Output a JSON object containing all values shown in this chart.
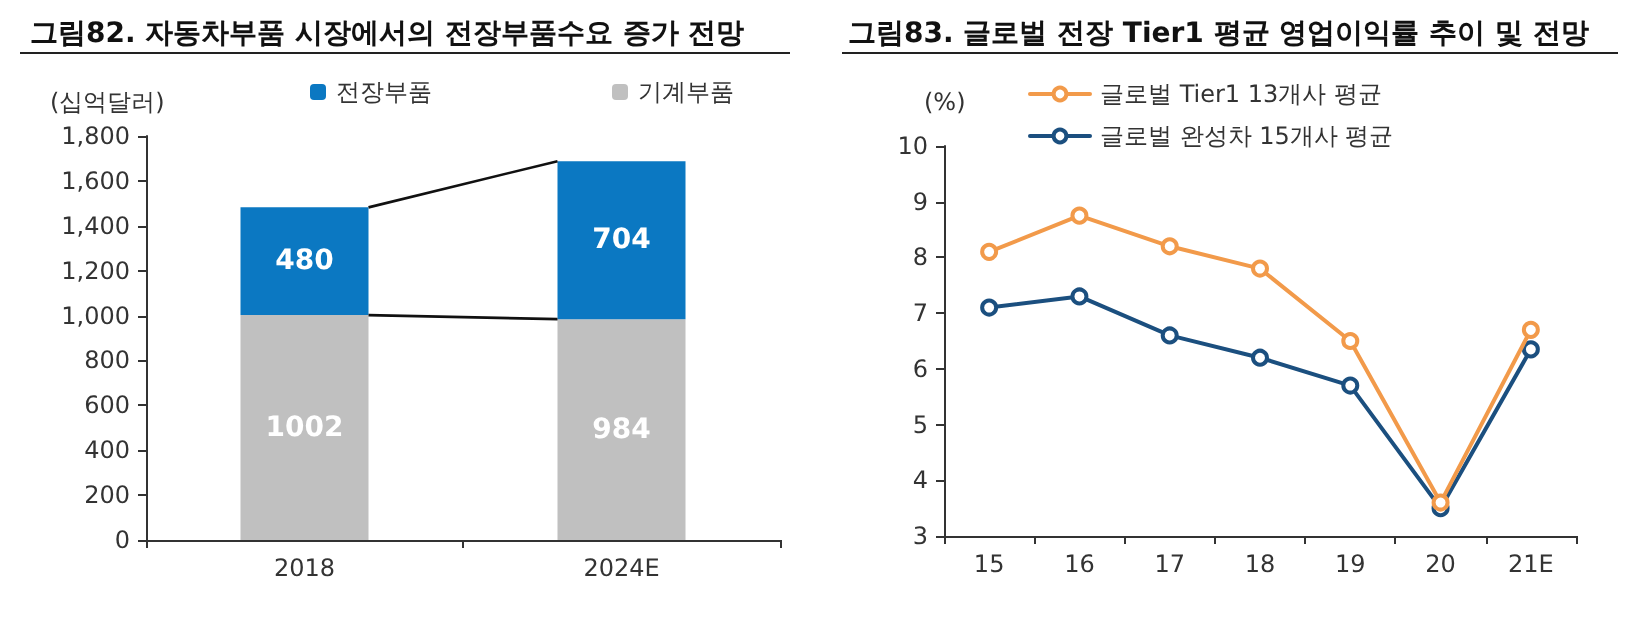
{
  "chart_data": [
    {
      "type": "bar",
      "title": "그림82. 자동차부품 시장에서의 전장부품수요 증가 전망",
      "ylabel": "(십억달러)",
      "categories": [
        "2018",
        "2024E"
      ],
      "stacked": true,
      "series": [
        {
          "name": "기계부품",
          "color": "#c0c0c0",
          "values": [
            1002,
            984
          ]
        },
        {
          "name": "전장부품",
          "color": "#0b78c2",
          "values": [
            480,
            704
          ]
        }
      ],
      "ylim": [
        0,
        1800
      ],
      "yticks": [
        {
          "value": 0,
          "label": "0"
        },
        {
          "value": 200,
          "label": "200"
        },
        {
          "value": 400,
          "label": "400"
        },
        {
          "value": 600,
          "label": "600"
        },
        {
          "value": 800,
          "label": "800"
        },
        {
          "value": 1000,
          "label": "1,000"
        },
        {
          "value": 1200,
          "label": "1,200"
        },
        {
          "value": 1400,
          "label": "1,400"
        },
        {
          "value": 1600,
          "label": "1,600"
        },
        {
          "value": 1800,
          "label": "1,800"
        }
      ],
      "data_labels": true,
      "legend": "top",
      "grid": false
    },
    {
      "type": "line",
      "title": "그림83. 글로벌 전장 Tier1 평균 영업이익률 추이 및 전망",
      "ylabel": "(%)",
      "categories": [
        "15",
        "16",
        "17",
        "18",
        "19",
        "20",
        "21E"
      ],
      "series": [
        {
          "name": "글로벌 Tier1 13개사 평균",
          "color": "#f29a4a",
          "values": [
            8.1,
            8.75,
            8.2,
            7.8,
            6.5,
            3.6,
            6.7
          ]
        },
        {
          "name": "글로벌 완성차 15개사 평균",
          "color": "#1b4f7f",
          "values": [
            7.1,
            7.3,
            6.6,
            6.2,
            5.7,
            3.5,
            6.35
          ]
        }
      ],
      "ylim": [
        3,
        10
      ],
      "yticks": [
        3,
        4,
        5,
        6,
        7,
        8,
        9,
        10
      ],
      "marker": "circle",
      "line_style": "solid",
      "legend": "top",
      "grid": false
    }
  ]
}
